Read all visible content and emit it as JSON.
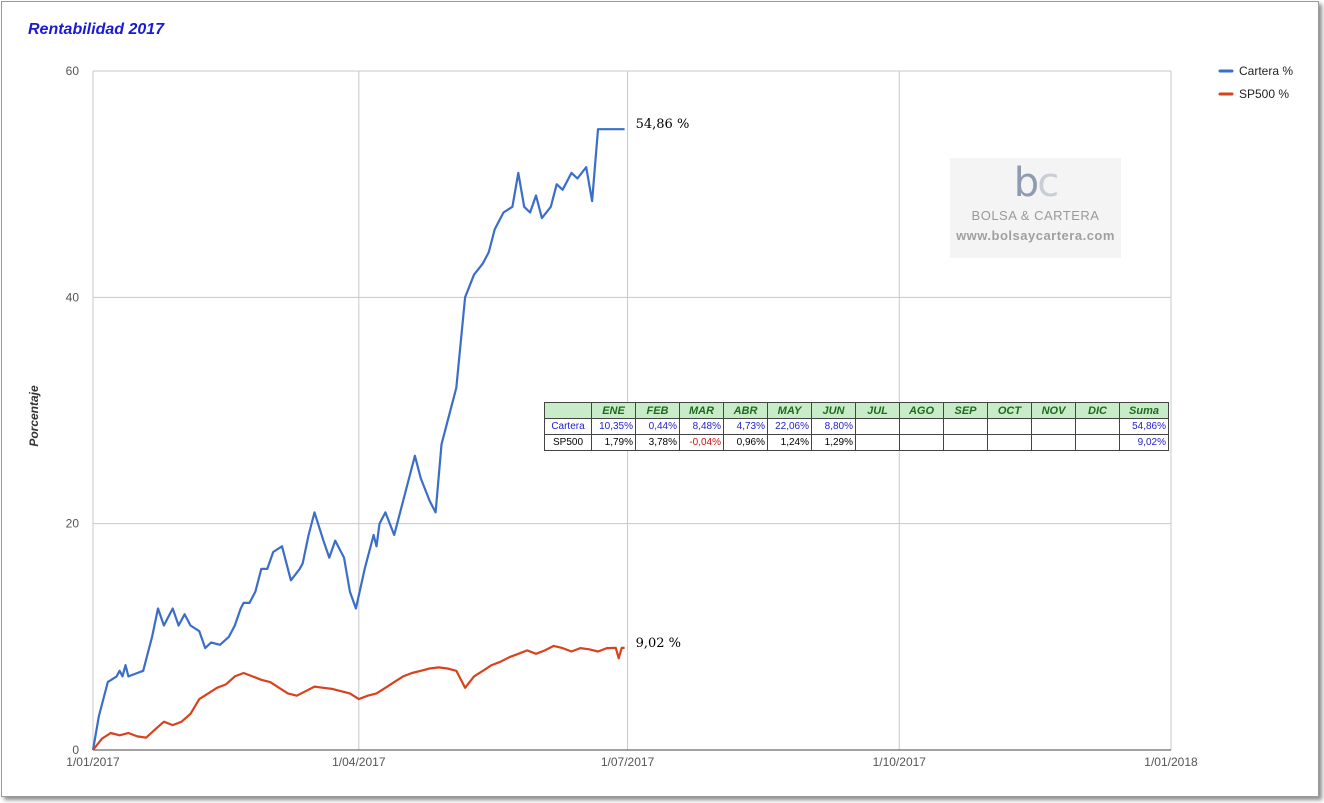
{
  "chart_data": {
    "type": "line",
    "title": "Rentabilidad 2017",
    "ylabel": "Porcentaje",
    "xlabel": "",
    "ylim": [
      0,
      60
    ],
    "y_ticks": [
      "0",
      "20",
      "40",
      "60"
    ],
    "x_ticks": [
      "1/01/2017",
      "1/04/2017",
      "1/07/2017",
      "1/10/2017",
      "1/01/2018"
    ],
    "x_range": [
      "2017-01-01",
      "2018-01-01"
    ],
    "grid": true,
    "legend_position": "top-right",
    "series": [
      {
        "name": "Cartera %",
        "color": "#3a6ec9",
        "end_label": "54,86 %",
        "x": [
          "2017-01-01",
          "2017-01-03",
          "2017-01-06",
          "2017-01-09",
          "2017-01-10",
          "2017-01-11",
          "2017-01-12",
          "2017-01-13",
          "2017-01-16",
          "2017-01-18",
          "2017-01-20",
          "2017-01-21",
          "2017-01-23",
          "2017-01-25",
          "2017-01-28",
          "2017-01-30",
          "2017-01-31",
          "2017-02-01",
          "2017-02-03",
          "2017-02-06",
          "2017-02-08",
          "2017-02-10",
          "2017-02-13",
          "2017-02-16",
          "2017-02-18",
          "2017-02-20",
          "2017-02-21",
          "2017-02-23",
          "2017-02-25",
          "2017-02-27",
          "2017-03-01",
          "2017-03-03",
          "2017-03-06",
          "2017-03-09",
          "2017-03-12",
          "2017-03-13",
          "2017-03-15",
          "2017-03-17",
          "2017-03-20",
          "2017-03-22",
          "2017-03-24",
          "2017-03-27",
          "2017-03-29",
          "2017-03-31",
          "2017-04-03",
          "2017-04-06",
          "2017-04-07",
          "2017-04-08",
          "2017-04-10",
          "2017-04-13",
          "2017-04-16",
          "2017-04-18",
          "2017-04-20",
          "2017-04-22",
          "2017-04-25",
          "2017-04-27",
          "2017-04-29",
          "2017-05-01",
          "2017-05-04",
          "2017-05-07",
          "2017-05-10",
          "2017-05-13",
          "2017-05-15",
          "2017-05-17",
          "2017-05-20",
          "2017-05-23",
          "2017-05-25",
          "2017-05-27",
          "2017-05-29",
          "2017-05-31",
          "2017-06-02",
          "2017-06-05",
          "2017-06-07",
          "2017-06-09",
          "2017-06-12",
          "2017-06-14",
          "2017-06-17",
          "2017-06-19",
          "2017-06-21",
          "2017-06-24",
          "2017-06-27",
          "2017-06-28",
          "2017-06-29",
          "2017-06-30"
        ],
        "values": [
          0,
          3,
          6,
          6.5,
          7,
          6.5,
          7.5,
          6.5,
          6.8,
          7,
          9,
          10,
          12.5,
          11,
          12.5,
          11,
          11.5,
          12,
          11,
          10.5,
          9,
          9.5,
          9.3,
          10,
          11,
          12.5,
          13,
          13,
          14,
          16,
          16,
          17.5,
          18,
          15,
          16,
          16.5,
          19,
          21,
          18.5,
          17,
          18.5,
          17,
          14,
          12.5,
          16,
          19,
          18,
          20,
          21,
          19,
          22,
          24,
          26,
          24,
          22,
          21,
          27,
          29,
          32,
          40,
          42,
          43,
          44,
          46,
          47.5,
          48,
          51,
          48,
          47.5,
          49,
          47,
          48,
          50,
          49.5,
          51,
          50.5,
          51.5,
          48.5,
          54.86,
          54.86,
          54.86,
          54.86,
          54.86,
          54.86
        ]
      },
      {
        "name": "SP500 %",
        "color": "#d9421c",
        "end_label": "9,02 %",
        "x": [
          "2017-01-01",
          "2017-01-04",
          "2017-01-07",
          "2017-01-10",
          "2017-01-13",
          "2017-01-16",
          "2017-01-19",
          "2017-01-22",
          "2017-01-25",
          "2017-01-28",
          "2017-01-31",
          "2017-02-03",
          "2017-02-06",
          "2017-02-09",
          "2017-02-12",
          "2017-02-15",
          "2017-02-18",
          "2017-02-21",
          "2017-02-24",
          "2017-02-27",
          "2017-03-02",
          "2017-03-05",
          "2017-03-08",
          "2017-03-11",
          "2017-03-14",
          "2017-03-17",
          "2017-03-20",
          "2017-03-23",
          "2017-03-26",
          "2017-03-29",
          "2017-04-01",
          "2017-04-04",
          "2017-04-07",
          "2017-04-10",
          "2017-04-13",
          "2017-04-16",
          "2017-04-19",
          "2017-04-22",
          "2017-04-25",
          "2017-04-28",
          "2017-05-01",
          "2017-05-04",
          "2017-05-07",
          "2017-05-10",
          "2017-05-13",
          "2017-05-16",
          "2017-05-19",
          "2017-05-22",
          "2017-05-25",
          "2017-05-28",
          "2017-05-31",
          "2017-06-03",
          "2017-06-06",
          "2017-06-09",
          "2017-06-12",
          "2017-06-15",
          "2017-06-18",
          "2017-06-21",
          "2017-06-24",
          "2017-06-27",
          "2017-06-28",
          "2017-06-29",
          "2017-06-30"
        ],
        "values": [
          0,
          1,
          1.5,
          1.3,
          1.5,
          1.2,
          1.1,
          1.8,
          2.5,
          2.2,
          2.5,
          3.2,
          4.5,
          5,
          5.5,
          5.8,
          6.5,
          6.8,
          6.5,
          6.2,
          6,
          5.5,
          5,
          4.8,
          5.2,
          5.6,
          5.5,
          5.4,
          5.2,
          5,
          4.5,
          4.8,
          5,
          5.5,
          6,
          6.5,
          6.8,
          7,
          7.2,
          7.3,
          7.2,
          7,
          5.5,
          6.5,
          7,
          7.5,
          7.8,
          8.2,
          8.5,
          8.8,
          8.5,
          8.8,
          9.2,
          9,
          8.7,
          9,
          8.9,
          8.7,
          9,
          9.02,
          8.1,
          9.02,
          9.02
        ]
      }
    ]
  },
  "watermark": {
    "logo_b": "b",
    "logo_c": "c",
    "name": "BOLSA & CARTERA",
    "url": "www.bolsaycartera.com"
  },
  "table": {
    "headers": [
      "",
      "ENE",
      "FEB",
      "MAR",
      "ABR",
      "MAY",
      "JUN",
      "JUL",
      "AGO",
      "SEP",
      "OCT",
      "NOV",
      "DIC",
      "Suma"
    ],
    "rows": [
      {
        "label": "Cartera",
        "values": [
          "10,35%",
          "0,44%",
          "8,48%",
          "4,73%",
          "22,06%",
          "8,80%",
          "",
          "",
          "",
          "",
          "",
          ""
        ],
        "sum": "54,86%"
      },
      {
        "label": "SP500",
        "values": [
          "1,79%",
          "3,78%",
          "-0,04%",
          "0,96%",
          "1,24%",
          "1,29%",
          "",
          "",
          "",
          "",
          "",
          ""
        ],
        "sum": "9,02%"
      }
    ],
    "negative_color": "#d01010"
  }
}
